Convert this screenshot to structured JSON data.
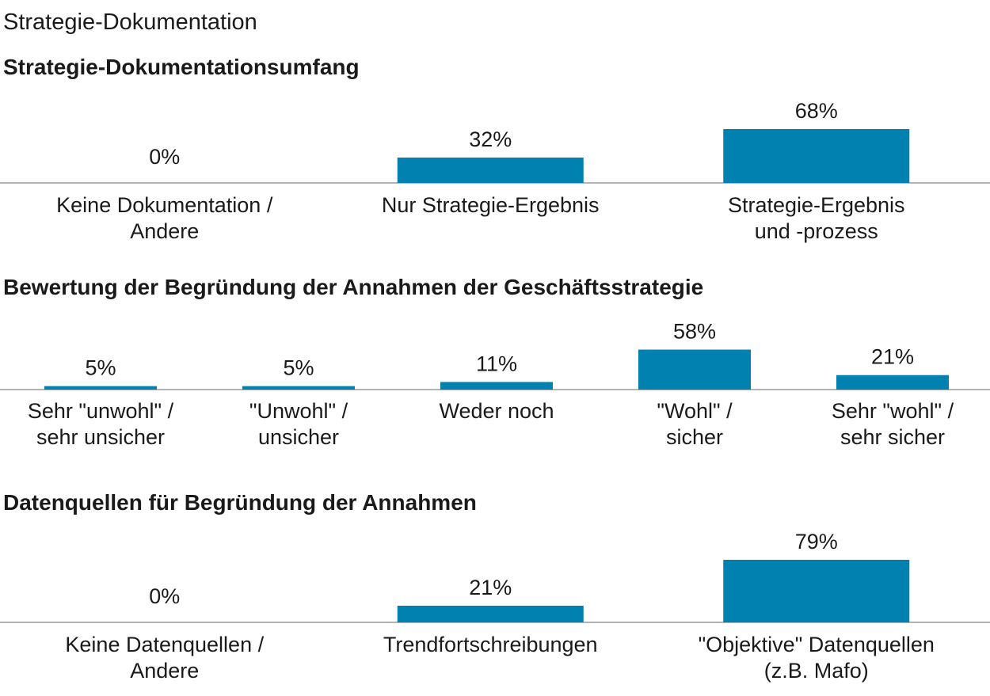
{
  "page_title": "Strategie-Dokumentation",
  "colors": {
    "bar": "#0081b0",
    "axis": "#9a9a9a",
    "text": "#1a1a1a"
  },
  "chart_data": [
    {
      "type": "bar",
      "title": "Strategie-Dokumentationsumfang",
      "categories": [
        [
          "Keine Dokumentation /",
          "Andere"
        ],
        [
          "Nur Strategie-Ergebnis"
        ],
        [
          "Strategie-Ergebnis",
          "und -prozess"
        ]
      ],
      "values": [
        0,
        32,
        68
      ],
      "value_labels": [
        "0%",
        "32%",
        "68%"
      ],
      "unit": "%",
      "grid": false,
      "legend": "none"
    },
    {
      "type": "bar",
      "title": "Bewertung der Begründung der Annahmen der Geschäftsstrategie",
      "categories": [
        [
          "Sehr \"unwohl\" /",
          "sehr unsicher"
        ],
        [
          "\"Unwohl\" /",
          "unsicher"
        ],
        [
          "Weder noch"
        ],
        [
          "\"Wohl\" /",
          "sicher"
        ],
        [
          "Sehr \"wohl\" /",
          "sehr sicher"
        ]
      ],
      "values": [
        5,
        5,
        11,
        58,
        21
      ],
      "value_labels": [
        "5%",
        "5%",
        "11%",
        "58%",
        "21%"
      ],
      "unit": "%",
      "grid": false,
      "legend": "none"
    },
    {
      "type": "bar",
      "title": "Datenquellen für Begründung der Annahmen",
      "categories": [
        [
          "Keine Datenquellen /",
          "Andere"
        ],
        [
          "Trendfortschreibungen"
        ],
        [
          "\"Objektive\" Datenquellen",
          "(z.B. Mafo)"
        ]
      ],
      "values": [
        0,
        21,
        79
      ],
      "value_labels": [
        "0%",
        "21%",
        "79%"
      ],
      "unit": "%",
      "grid": false,
      "legend": "none"
    }
  ]
}
